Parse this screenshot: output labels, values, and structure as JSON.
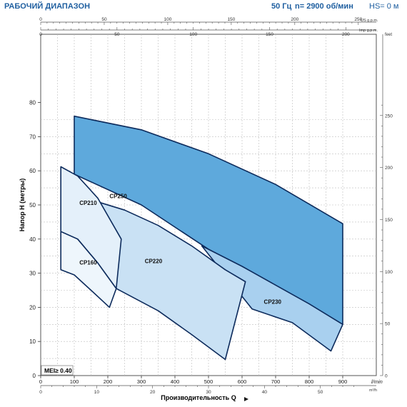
{
  "header": {
    "title": "РАБОЧИЙ ДИАПАЗОН",
    "frequency": "50 Гц",
    "speed": "n= 2900 об/мин",
    "hs": "HS= 0 м"
  },
  "chart_data": {
    "type": "area",
    "xlabel": "Производительность Q",
    "ylabel": "Напор Н (метры)",
    "x_unit": "l/min",
    "x2_unit": "m³/h",
    "top_unit_1": "US g.p.m.",
    "top_unit_2": "Imp g.p.m.",
    "y2_unit": "feet",
    "xlim": [
      0,
      950
    ],
    "ylim": [
      0,
      80
    ],
    "x_ticks": [
      0,
      100,
      200,
      300,
      400,
      500,
      600,
      700,
      800,
      900
    ],
    "y_ticks": [
      0,
      10,
      20,
      30,
      40,
      50,
      60,
      70,
      80
    ],
    "m3h_ticks": [
      0,
      10,
      20,
      30,
      40,
      50
    ],
    "usgpm_ticks": [
      0,
      50,
      100,
      150,
      200,
      250
    ],
    "impgpm_ticks": [
      0,
      50,
      100,
      150,
      200
    ],
    "feet_ticks": [
      0,
      50,
      100,
      150,
      200,
      250
    ],
    "annotation": "MEI≥ 0.40",
    "colors": {
      "cp250": "#5ea9dc",
      "cp230": "#a9d0ef",
      "cp220": "#c9e1f4",
      "cp210": "#e4f0fa",
      "cp160": "#eef6fc",
      "outline": "#0d2b5c"
    },
    "series": [
      {
        "name": "CP250",
        "upper": [
          [
            100,
            76
          ],
          [
            300,
            72
          ],
          [
            500,
            65
          ],
          [
            700,
            56
          ],
          [
            900,
            44.5
          ]
        ],
        "lower": [
          [
            100,
            59
          ],
          [
            300,
            50
          ],
          [
            500,
            37
          ],
          [
            700,
            26
          ],
          [
            900,
            15
          ]
        ]
      },
      {
        "name": "CP230",
        "upper": [
          [
            480,
            38
          ],
          [
            600,
            32
          ],
          [
            700,
            26.5
          ],
          [
            800,
            21
          ],
          [
            900,
            15
          ]
        ],
        "lower": [
          [
            630,
            19.5
          ],
          [
            750,
            15.5
          ],
          [
            865,
            7.2
          ]
        ]
      },
      {
        "name": "CP220",
        "upper": [
          [
            150,
            51.5
          ],
          [
            250,
            48.5
          ],
          [
            350,
            44
          ],
          [
            450,
            38
          ],
          [
            550,
            31
          ],
          [
            610,
            27.5
          ]
        ],
        "lower": [
          [
            225,
            25.5
          ],
          [
            350,
            19
          ],
          [
            450,
            12
          ],
          [
            550,
            4.7
          ]
        ]
      },
      {
        "name": "CP210",
        "upper": [
          [
            60,
            61.2
          ],
          [
            110,
            58.5
          ],
          [
            170,
            52
          ],
          [
            240,
            40
          ]
        ],
        "lower": [
          [
            60,
            42.2
          ],
          [
            110,
            40
          ],
          [
            170,
            33
          ],
          [
            225,
            25.5
          ]
        ]
      },
      {
        "name": "CP160",
        "upper": [
          [
            60,
            42.2
          ],
          [
            110,
            40
          ],
          [
            170,
            33
          ],
          [
            225,
            25.5
          ]
        ],
        "lower": [
          [
            60,
            31
          ],
          [
            100,
            29.5
          ],
          [
            150,
            25
          ],
          [
            205,
            20
          ]
        ]
      }
    ]
  }
}
